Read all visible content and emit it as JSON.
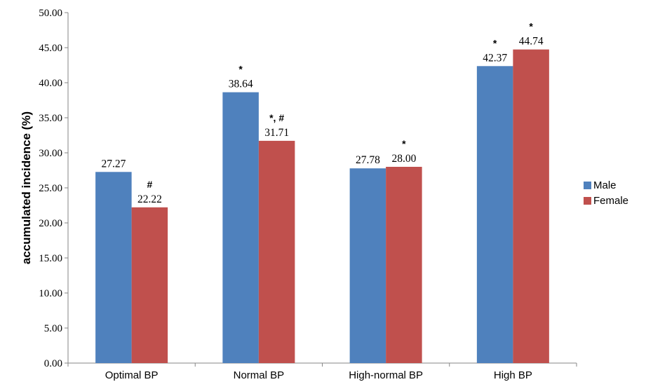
{
  "chart_data": {
    "type": "bar",
    "title": "",
    "xlabel": "",
    "ylabel": "accumulated incidence (%)",
    "ylim": [
      0,
      50
    ],
    "ytick_step": 5,
    "ytick_labels": [
      "0.00",
      "5.00",
      "10.00",
      "15.00",
      "20.00",
      "25.00",
      "30.00",
      "35.00",
      "40.00",
      "45.00",
      "50.00"
    ],
    "categories": [
      "Optimal BP",
      "Normal BP",
      "High-normal BP",
      "High BP"
    ],
    "series": [
      {
        "name": "Male",
        "color": "#4f81bd",
        "values": [
          27.27,
          38.64,
          27.78,
          42.37
        ],
        "labels": [
          "27.27",
          "38.64",
          "27.78",
          "42.37"
        ],
        "annotations": [
          "",
          "*",
          "",
          "*"
        ]
      },
      {
        "name": "Female",
        "color": "#c0504d",
        "values": [
          22.22,
          31.71,
          28.0,
          44.74
        ],
        "labels": [
          "22.22",
          "31.71",
          "28.00",
          "44.74"
        ],
        "annotations": [
          "#",
          "*, #",
          "*",
          "*"
        ]
      }
    ],
    "legend_position": "right",
    "grid": false
  }
}
